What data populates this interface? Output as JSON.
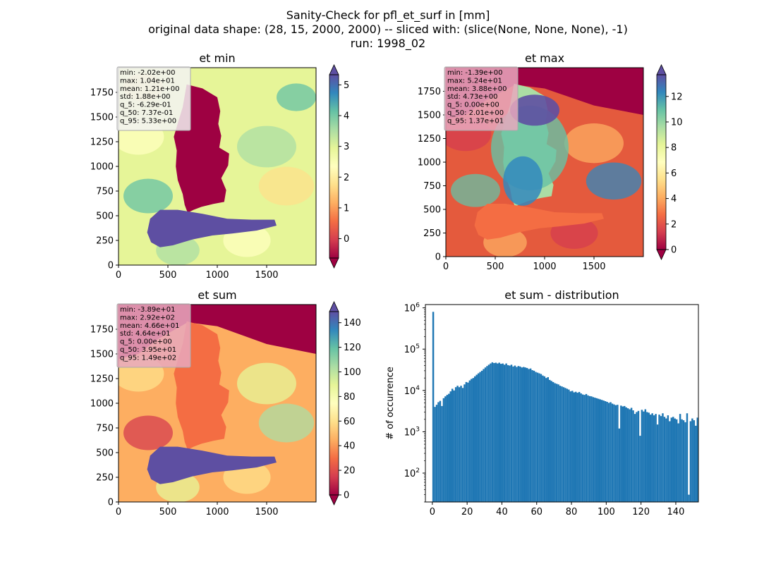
{
  "suptitle": {
    "line1": "Sanity-Check for pfl_et_surf in [mm]",
    "line2": "original data shape: (28, 15, 2000, 2000) -- sliced with: (slice(None, None, None), -1)",
    "line3": "run: 1998_02"
  },
  "colors": {
    "cmap": [
      "#9e0142",
      "#d53e4f",
      "#f46d43",
      "#fdae61",
      "#fee08b",
      "#ffffbf",
      "#e6f598",
      "#abdda4",
      "#66c2a5",
      "#3288bd",
      "#5e4fa2"
    ],
    "hist_bar": "#1f77b4",
    "stats_box_light": "#f2f2f2",
    "stats_box_pink": "#e8a8bd"
  },
  "chart_data": [
    {
      "type": "heatmap",
      "title": "et min",
      "xlim": [
        0,
        2000
      ],
      "ylim": [
        0,
        2000
      ],
      "xticks": [
        0,
        500,
        1000,
        1500
      ],
      "yticks": [
        0,
        250,
        500,
        750,
        1000,
        1250,
        1500,
        1750
      ],
      "colorbar": {
        "vmin": -0.63,
        "vmax": 5.33,
        "ticks": [
          0,
          1,
          2,
          3,
          4,
          5
        ],
        "extend": "both"
      },
      "stats": [
        "min: -2.02e+00",
        "max: 1.04e+01",
        "mean: 1.21e+00",
        "std: 1.88e+00",
        "q_5: -6.29e-01",
        "q_50: 7.37e-01",
        "q_95: 5.33e+00"
      ],
      "stats_style": "light"
    },
    {
      "type": "heatmap",
      "title": "et max",
      "xlim": [
        0,
        2000
      ],
      "ylim": [
        0,
        2000
      ],
      "xticks": [
        0,
        500,
        1000,
        1500
      ],
      "yticks": [
        0,
        250,
        500,
        750,
        1000,
        1250,
        1500,
        1750
      ],
      "colorbar": {
        "vmin": 0,
        "vmax": 13.7,
        "ticks": [
          0,
          2,
          4,
          6,
          8,
          10,
          12
        ],
        "extend": "both"
      },
      "stats": [
        "min: -1.39e+00",
        "max: 5.24e+01",
        "mean: 3.88e+00",
        "std: 4.73e+00",
        "q_5: 0.00e+00",
        "q_50: 2.01e+00",
        "q_95: 1.37e+01"
      ],
      "stats_style": "pink"
    },
    {
      "type": "heatmap",
      "title": "et sum",
      "xlim": [
        0,
        2000
      ],
      "ylim": [
        0,
        2000
      ],
      "xticks": [
        0,
        500,
        1000,
        1500
      ],
      "yticks": [
        0,
        250,
        500,
        750,
        1000,
        1250,
        1500,
        1750
      ],
      "colorbar": {
        "vmin": 0,
        "vmax": 149,
        "ticks": [
          0,
          20,
          40,
          60,
          80,
          100,
          120,
          140
        ],
        "extend": "both"
      },
      "stats": [
        "min: -3.89e+01",
        "max: 2.92e+02",
        "mean: 4.66e+01",
        "std: 4.64e+01",
        "q_5: 0.00e+00",
        "q_50: 3.95e+01",
        "q_95: 1.49e+02"
      ],
      "stats_style": "pink"
    },
    {
      "type": "bar",
      "title": "et sum - distribution",
      "ylabel": "# of occurrence",
      "xlabel": "",
      "xlim": [
        -4,
        153
      ],
      "ylim": [
        20,
        1200000
      ],
      "yscale": "log",
      "xticks": [
        0,
        20,
        40,
        60,
        80,
        100,
        120,
        140
      ],
      "yticks_exp": [
        2,
        3,
        4,
        5,
        6
      ],
      "bin_width": 1,
      "bin_start": 0,
      "values": [
        800000,
        4000,
        4500,
        5200,
        5600,
        4200,
        6500,
        7200,
        7800,
        8300,
        9500,
        11000,
        10000,
        12000,
        13000,
        12000,
        13000,
        11500,
        14000,
        16000,
        15500,
        17500,
        19000,
        20000,
        22000,
        24000,
        26000,
        28000,
        30000,
        33000,
        36000,
        39000,
        42000,
        45000,
        48000,
        46000,
        47000,
        45000,
        47000,
        44000,
        45000,
        42000,
        45000,
        41000,
        40000,
        42000,
        38000,
        40000,
        37000,
        39000,
        38000,
        36000,
        37000,
        36000,
        35000,
        33000,
        34000,
        31000,
        30000,
        28000,
        27000,
        26000,
        25000,
        23000,
        22000,
        20000,
        21000,
        18000,
        17000,
        16000,
        15000,
        14500,
        14000,
        13000,
        12500,
        12000,
        11500,
        11000,
        10500,
        9500,
        9800,
        9000,
        9300,
        8800,
        9200,
        8500,
        8000,
        7800,
        8200,
        7600,
        7300,
        7200,
        6900,
        6700,
        6500,
        6300,
        6100,
        5900,
        5700,
        5500,
        5300,
        5000,
        5200,
        4800,
        4600,
        4400,
        4500,
        1200,
        4300,
        4100,
        4200,
        3900,
        3700,
        3500,
        3800,
        3300,
        2700,
        3000,
        3200,
        800,
        3400,
        3100,
        3500,
        3000,
        2900,
        2600,
        2800,
        2500,
        2700,
        1500,
        2600,
        2400,
        2800,
        2300,
        2100,
        2500,
        1800,
        2200,
        2300,
        2100,
        2000,
        1600,
        2700,
        2000,
        1900,
        1700,
        2800,
        30,
        1800,
        2100,
        1900,
        1400,
        2200
      ]
    }
  ]
}
